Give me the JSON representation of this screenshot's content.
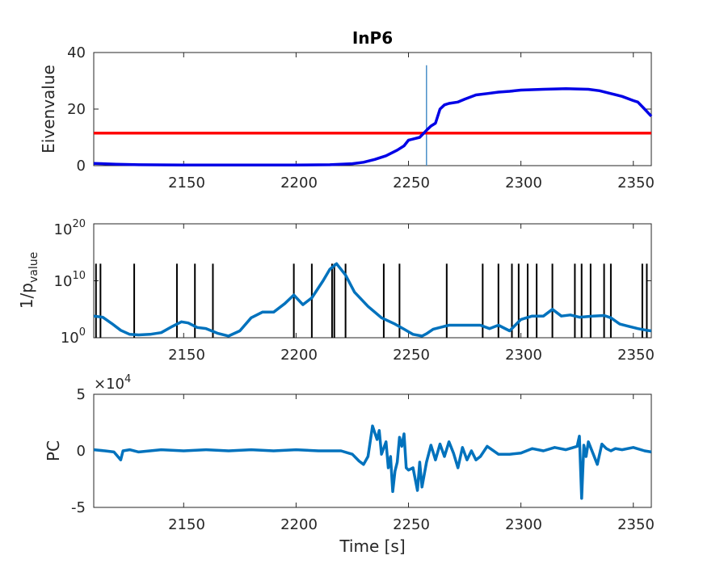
{
  "figure": {
    "colors": {
      "axis": "#262626",
      "threshold": "#ff0000",
      "eigen": "#0000e6",
      "pval": "#0072bd",
      "marker": "#4a90c8",
      "event": "#000000"
    }
  },
  "chart_data": [
    {
      "type": "line",
      "title": "InP6",
      "xlabel": "",
      "ylabel": "Eivenvalue",
      "xlim": [
        2110,
        2358
      ],
      "ylim": [
        0,
        40
      ],
      "xticks": [
        2150,
        2200,
        2250,
        2300,
        2350
      ],
      "xtick_labels": [
        "2150",
        "2200",
        "2250",
        "2300",
        "2350"
      ],
      "yticks": [
        0,
        20,
        40
      ],
      "ytick_labels": [
        "0",
        "20",
        "40"
      ],
      "grid": false,
      "threshold": 11.5,
      "vline_x": 2258,
      "series": [
        {
          "x": [
            2110,
            2120,
            2130,
            2150,
            2170,
            2200,
            2215,
            2220,
            2225,
            2230,
            2235,
            2240,
            2245,
            2248,
            2250,
            2255,
            2258,
            2260,
            2262,
            2264,
            2266,
            2268,
            2272,
            2275,
            2280,
            2285,
            2290,
            2295,
            2300,
            2310,
            2320,
            2330,
            2335,
            2340,
            2345,
            2350,
            2352,
            2355,
            2358
          ],
          "y": [
            0.8,
            0.5,
            0.3,
            0.2,
            0.2,
            0.2,
            0.3,
            0.5,
            0.7,
            1.2,
            2.2,
            3.5,
            5.5,
            7.0,
            9.0,
            10.0,
            12.5,
            14.0,
            15.0,
            20.0,
            21.5,
            22.0,
            22.5,
            23.5,
            25.0,
            25.5,
            26.0,
            26.3,
            26.7,
            27.0,
            27.2,
            27.0,
            26.5,
            25.5,
            24.5,
            23.0,
            22.5,
            20.0,
            17.5
          ]
        }
      ]
    },
    {
      "type": "line",
      "title": "",
      "xlabel": "",
      "ylabel": "1/p_value",
      "ylabel_base": "1/p",
      "ylabel_sub": "value",
      "yscale": "log",
      "xlim": [
        2110,
        2358
      ],
      "ylim_exp": [
        0,
        20
      ],
      "xticks": [
        2150,
        2200,
        2250,
        2300,
        2350
      ],
      "xtick_labels": [
        "2150",
        "2200",
        "2250",
        "2300",
        "2350"
      ],
      "ytick_base": "10",
      "ytick_exponents": [
        "0",
        "10",
        "20"
      ],
      "grid": false,
      "event_markers": [
        2111,
        2113,
        2128,
        2147,
        2155,
        2163,
        2199,
        2207,
        2216,
        2217,
        2222,
        2239,
        2246,
        2267,
        2283,
        2290,
        2296,
        2299,
        2303,
        2307,
        2314,
        2324,
        2327,
        2331,
        2337,
        2340,
        2354,
        2356
      ],
      "series": [
        {
          "x": [
            2110,
            2114,
            2118,
            2122,
            2126,
            2130,
            2135,
            2140,
            2145,
            2149,
            2152,
            2156,
            2160,
            2165,
            2170,
            2175,
            2180,
            2185,
            2190,
            2195,
            2199,
            2203,
            2207,
            2212,
            2215,
            2218,
            2222,
            2226,
            2232,
            2238,
            2244,
            2248,
            2252,
            2256,
            2258,
            2261,
            2264,
            2268,
            2275,
            2282,
            2286,
            2290,
            2295,
            2300,
            2305,
            2310,
            2314,
            2318,
            2322,
            2326,
            2332,
            2337,
            2340,
            2344,
            2348,
            2352,
            2356,
            2358
          ],
          "y_exp": [
            3.8,
            3.6,
            2.5,
            1.3,
            0.6,
            0.5,
            0.6,
            0.9,
            2.0,
            2.8,
            2.6,
            1.8,
            1.6,
            0.8,
            0.3,
            1.2,
            3.5,
            4.5,
            4.5,
            6.0,
            7.5,
            5.8,
            7.0,
            10.0,
            12.0,
            13.0,
            11.0,
            8.0,
            5.5,
            3.5,
            2.4,
            1.5,
            0.6,
            0.3,
            0.7,
            1.5,
            1.8,
            2.2,
            2.2,
            2.2,
            1.6,
            2.2,
            1.2,
            3.2,
            3.8,
            3.8,
            5.0,
            3.8,
            4.0,
            3.6,
            3.8,
            3.9,
            3.5,
            2.4,
            2.0,
            1.6,
            1.3,
            1.2
          ]
        }
      ]
    },
    {
      "type": "line",
      "title": "",
      "xlabel": "Time [s]",
      "ylabel": "PC",
      "scale_label_base": "×10",
      "scale_label_exp": "4",
      "xlim": [
        2110,
        2358
      ],
      "ylim": [
        -5,
        5
      ],
      "xticks": [
        2150,
        2200,
        2250,
        2300,
        2350
      ],
      "xtick_labels": [
        "2150",
        "2200",
        "2250",
        "2300",
        "2350"
      ],
      "yticks": [
        -5,
        0,
        5
      ],
      "ytick_labels": [
        "-5",
        "0",
        "5"
      ],
      "grid": false,
      "series": [
        {
          "x": [
            2110,
            2115,
            2119,
            2122,
            2123,
            2126,
            2130,
            2140,
            2150,
            2160,
            2170,
            2180,
            2190,
            2200,
            2210,
            2220,
            2225,
            2228,
            2230,
            2232,
            2234,
            2236,
            2237,
            2238,
            2240,
            2241,
            2242,
            2243,
            2244,
            2245,
            2246,
            2247,
            2248,
            2249,
            2250,
            2252,
            2254,
            2255,
            2256,
            2258,
            2260,
            2262,
            2264,
            2266,
            2268,
            2270,
            2272,
            2274,
            2276,
            2278,
            2280,
            2282,
            2285,
            2290,
            2295,
            2300,
            2305,
            2310,
            2315,
            2320,
            2325,
            2326,
            2327,
            2328,
            2329,
            2330,
            2332,
            2334,
            2336,
            2338,
            2340,
            2342,
            2345,
            2350,
            2355,
            2358
          ],
          "y": [
            0.1,
            0.0,
            -0.1,
            -0.8,
            0.0,
            0.1,
            -0.1,
            0.1,
            0.0,
            0.1,
            0.0,
            0.1,
            0.0,
            0.1,
            0.0,
            0.0,
            -0.3,
            -0.9,
            -1.2,
            -0.5,
            2.2,
            1.0,
            1.8,
            -0.3,
            0.8,
            -1.5,
            -0.5,
            -3.6,
            -1.8,
            -1.0,
            1.2,
            0.4,
            1.5,
            -1.5,
            -1.7,
            -1.5,
            -3.5,
            -1.0,
            -3.2,
            -1.0,
            0.5,
            -0.8,
            0.6,
            -0.5,
            0.8,
            -0.2,
            -1.5,
            0.3,
            -0.8,
            0.0,
            -0.8,
            -0.5,
            0.4,
            -0.3,
            -0.3,
            -0.2,
            0.2,
            0.0,
            0.3,
            0.1,
            0.4,
            1.3,
            -4.2,
            0.5,
            -0.5,
            0.8,
            -0.2,
            -1.2,
            0.6,
            0.2,
            0.0,
            0.2,
            0.1,
            0.3,
            0.0,
            -0.1
          ]
        }
      ]
    }
  ]
}
